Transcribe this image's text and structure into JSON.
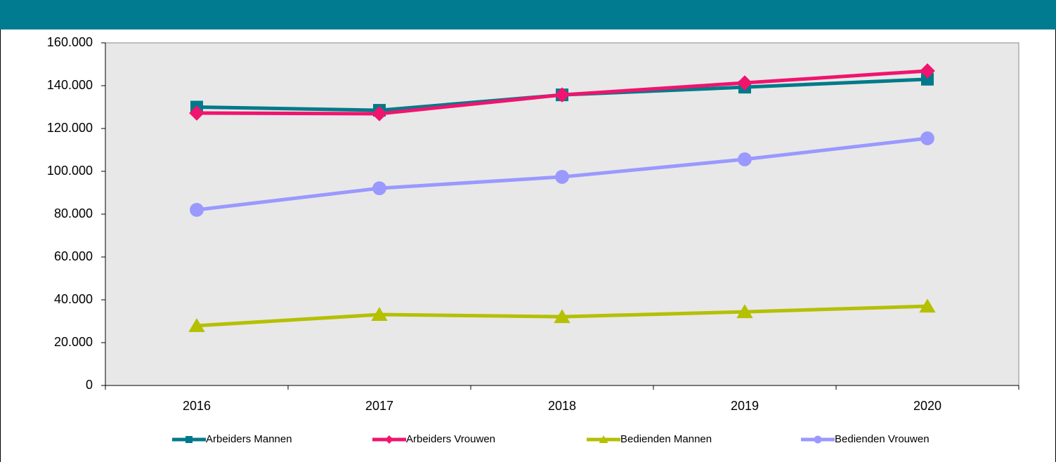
{
  "chart_data": {
    "type": "line",
    "categories": [
      "2016",
      "2017",
      "2018",
      "2019",
      "2020"
    ],
    "series": [
      {
        "name": "Arbeiders Mannen",
        "color": "#007a8a",
        "marker": "square",
        "values": [
          130000,
          128500,
          135700,
          139300,
          143000
        ]
      },
      {
        "name": "Arbeiders Vrouwen",
        "color": "#f0146e",
        "marker": "diamond",
        "values": [
          127200,
          126900,
          135700,
          141300,
          146900
        ]
      },
      {
        "name": "Bedienden Mannen",
        "color": "#b4c000",
        "marker": "triangle",
        "values": [
          27900,
          33100,
          32100,
          34400,
          37000
        ]
      },
      {
        "name": "Bedienden Vrouwen",
        "color": "#9999ff",
        "marker": "circle",
        "values": [
          82000,
          92100,
          97400,
          105600,
          115400
        ]
      }
    ],
    "ylim": [
      0,
      160000
    ],
    "yticks": [
      0,
      {
        "value": 20000,
        "label": "20.000"
      },
      {
        "value": 40000,
        "label": "40.000"
      },
      {
        "value": 60000,
        "label": "60.000"
      },
      {
        "value": 80000,
        "label": "80.000"
      },
      {
        "value": 100000,
        "label": "100.000"
      },
      {
        "value": 120000,
        "label": "120.000"
      },
      {
        "value": 140000,
        "label": "140.000"
      },
      {
        "value": 160000,
        "label": "160.000"
      }
    ],
    "legend": "bottom"
  }
}
